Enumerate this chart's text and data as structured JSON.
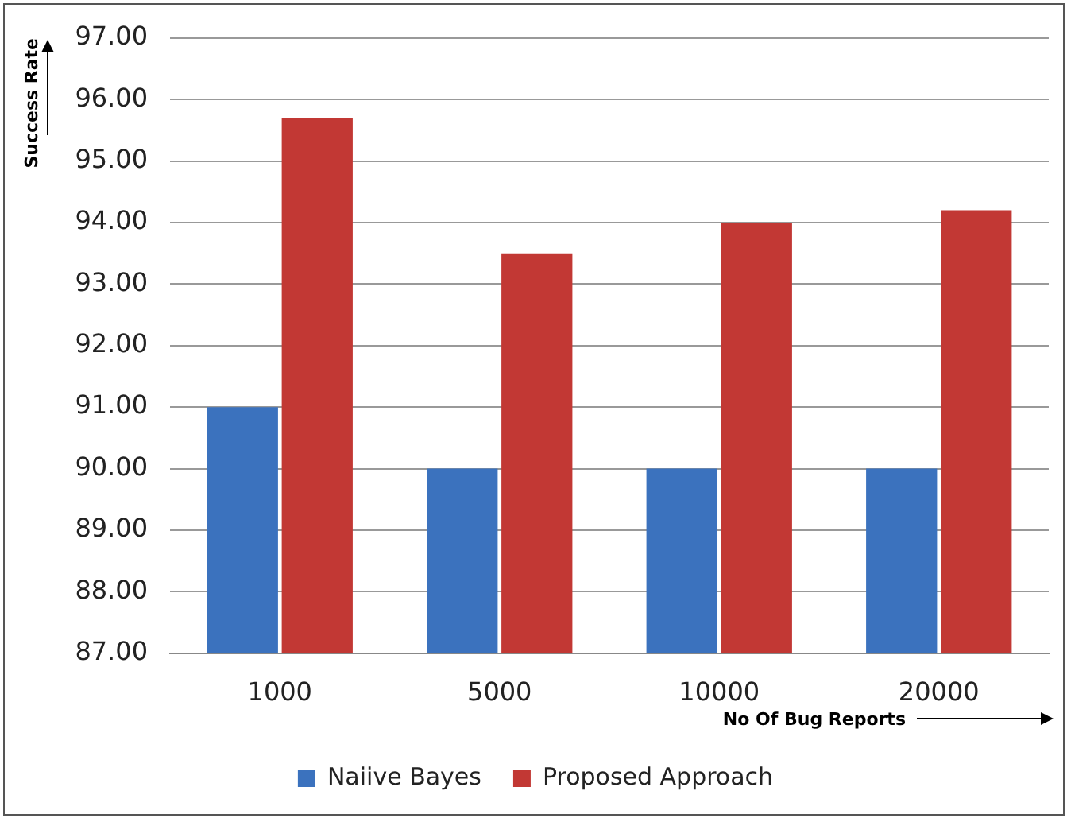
{
  "chart_data": {
    "type": "bar",
    "xlabel": "No Of Bug Reports",
    "ylabel": "Success Rate",
    "categories": [
      "1000",
      "5000",
      "10000",
      "20000"
    ],
    "series": [
      {
        "name": "Naiive Bayes",
        "color": "#3b72be",
        "values": [
          91.0,
          90.0,
          90.0,
          90.0
        ]
      },
      {
        "name": "Proposed Approach",
        "color": "#c23834",
        "values": [
          95.7,
          93.5,
          94.0,
          94.2
        ]
      }
    ],
    "ylim": [
      87,
      97
    ],
    "yticks": [
      {
        "value": 87,
        "label": "87.00"
      },
      {
        "value": 88,
        "label": "88.00"
      },
      {
        "value": 89,
        "label": "89.00"
      },
      {
        "value": 90,
        "label": "90.00"
      },
      {
        "value": 91,
        "label": "91.00"
      },
      {
        "value": 92,
        "label": "92.00"
      },
      {
        "value": 93,
        "label": "93.00"
      },
      {
        "value": 94,
        "label": "94.00"
      },
      {
        "value": 95,
        "label": "95.00"
      },
      {
        "value": 96,
        "label": "96.00"
      },
      {
        "value": 97,
        "label": "97.00"
      }
    ],
    "grid": "y",
    "legend": "bottom"
  }
}
